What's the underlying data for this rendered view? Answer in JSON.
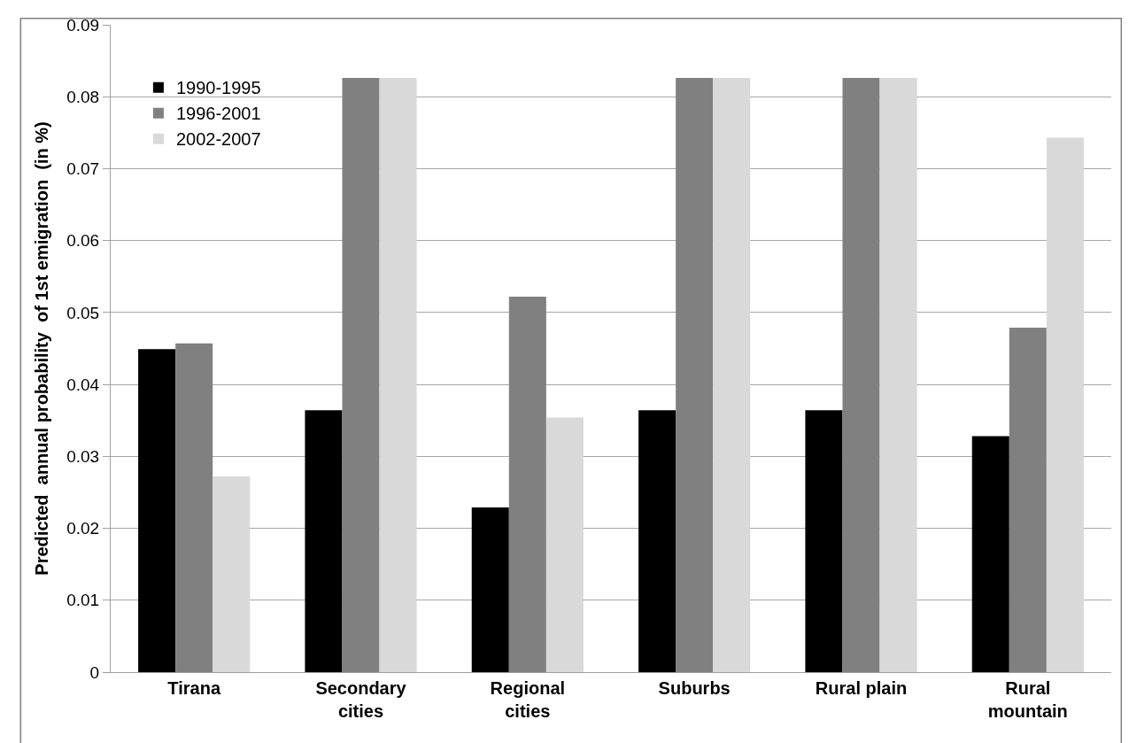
{
  "chart_data": {
    "type": "bar",
    "ylabel": "Predicted  annual probability  of 1st emigration  (in %)",
    "categories": [
      "Tirana",
      "Secondary\ncities",
      "Regional\ncities",
      "Suburbs",
      "Rural plain",
      "Rural\nmountain"
    ],
    "series": [
      {
        "name": "1990-1995",
        "color": "#000000",
        "values": [
          0.0449,
          0.0364,
          0.0229,
          0.0364,
          0.0364,
          0.0328
        ]
      },
      {
        "name": "1996-2001",
        "color": "#808080",
        "values": [
          0.0457,
          0.0826,
          0.0522,
          0.0826,
          0.0826,
          0.0479
        ]
      },
      {
        "name": "2002-2007",
        "color": "#d9d9d9",
        "values": [
          0.0272,
          0.0826,
          0.0354,
          0.0826,
          0.0826,
          0.0743
        ]
      }
    ],
    "ylim": [
      0,
      0.09
    ],
    "yticks": [
      {
        "value": 0,
        "label": "0"
      },
      0.01,
      0.02,
      0.03,
      0.04,
      0.05,
      0.06,
      0.07,
      0.08,
      0.09
    ],
    "grid": "y",
    "legend": "top left"
  }
}
